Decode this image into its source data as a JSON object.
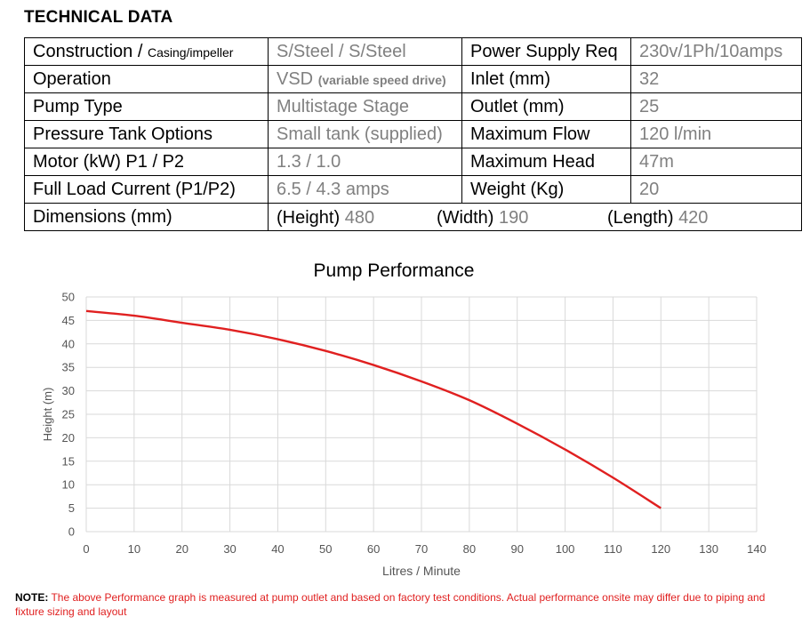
{
  "section_title": "TECHNICAL DATA",
  "specs": [
    {
      "label": "Construction / ",
      "label_small": "Casing/impeller",
      "value": "S/Steel / S/Steel",
      "label2": "Power Supply Req",
      "value2": "230v/1Ph/10amps"
    },
    {
      "label": "Operation",
      "value": "VSD ",
      "value_small": "(variable speed drive)",
      "label2": "Inlet (mm)",
      "value2": "32"
    },
    {
      "label": "Pump Type",
      "value": "Multistage Stage",
      "label2": "Outlet (mm)",
      "value2": "25"
    },
    {
      "label": "Pressure Tank Options",
      "value": "Small tank (supplied)",
      "label2": "Maximum Flow",
      "value2": "120 l/min"
    },
    {
      "label": "Motor  (kW) P1 / P2",
      "value": "1.3 / 1.0",
      "label2": "Maximum Head",
      "value2": "47m"
    },
    {
      "label": "Full Load Current (P1/P2)",
      "value": "6.5 / 4.3 amps",
      "label2": "Weight (Kg)",
      "value2": "20"
    }
  ],
  "dimensions": {
    "label": "Dimensions (mm)",
    "height_label": "(Height)",
    "height_value": "480",
    "width_label": "(Width)",
    "width_value": "190",
    "length_label": "(Length)",
    "length_value": "420"
  },
  "chart_data": {
    "type": "line",
    "title": "Pump Performance",
    "xlabel": "Litres / Minute",
    "ylabel": "Height (m)",
    "xlim": [
      0,
      140
    ],
    "ylim": [
      0,
      50
    ],
    "xticks": [
      "0",
      "10",
      "20",
      "30",
      "40",
      "50",
      "60",
      "70",
      "80",
      "90",
      "100",
      "110",
      "120",
      "130",
      "140"
    ],
    "yticks": [
      "0",
      "5",
      "10",
      "15",
      "20",
      "25",
      "30",
      "35",
      "40",
      "45",
      "50"
    ],
    "grid": true,
    "series": [
      {
        "color": "#e02020",
        "x": [
          0,
          10,
          20,
          30,
          40,
          50,
          60,
          70,
          80,
          90,
          100,
          110,
          120
        ],
        "y": [
          47,
          46,
          44.5,
          43,
          41,
          38.5,
          35.5,
          32,
          28,
          23,
          17.5,
          11.5,
          5
        ]
      }
    ]
  },
  "note": {
    "label": "NOTE:",
    "text": " The above Performance graph is measured at pump outlet and based on factory test conditions. Actual performance onsite may differ due to piping and fixture sizing and layout"
  }
}
